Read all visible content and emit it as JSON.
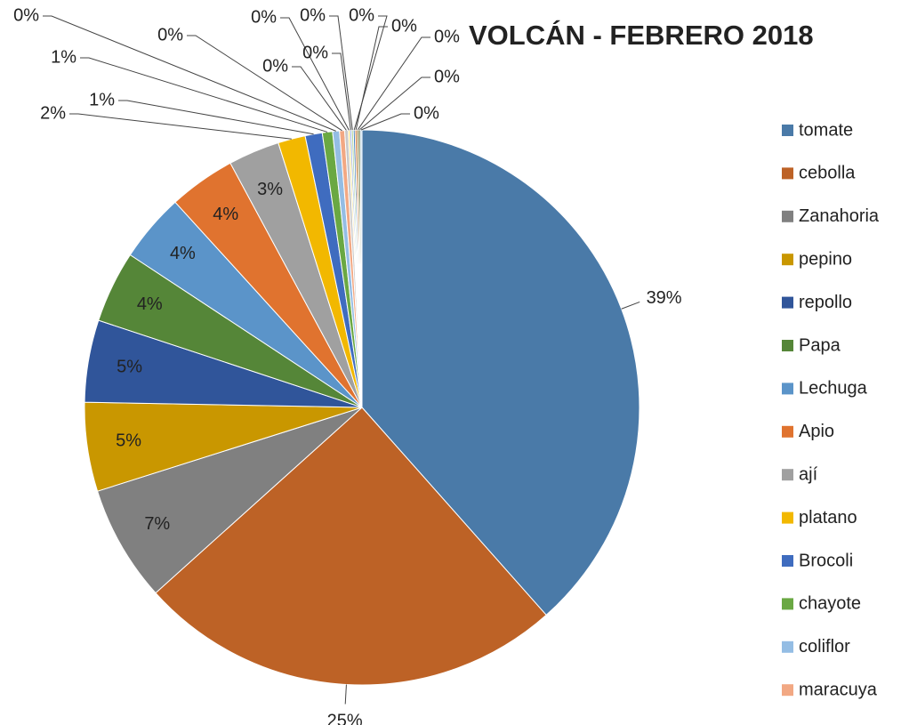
{
  "chart_data": {
    "type": "pie",
    "title": "VOLCÁN - FEBRERO 2018",
    "categories": [
      "tomate",
      "cebolla",
      "Zanahoria",
      "pepino",
      "repollo",
      "Papa",
      "Lechuga",
      "Apio",
      "ají",
      "platano",
      "Brocoli",
      "chayote",
      "coliflor",
      "maracuya",
      null,
      null,
      null,
      null,
      null,
      null,
      null,
      null,
      null
    ],
    "values": [
      38.6,
      25.0,
      6.8,
      5.2,
      4.8,
      4.2,
      4.0,
      3.9,
      3.0,
      1.6,
      1.0,
      0.6,
      0.4,
      0.3,
      0.2,
      0.1,
      0.1,
      0.1,
      0.1,
      0.1,
      0.1,
      0.1,
      0.1
    ],
    "value_labels": [
      "39%",
      "25%",
      "7%",
      "5%",
      "5%",
      "4%",
      "4%",
      "4%",
      "3%",
      "2%",
      "1%",
      "1%",
      "0%",
      "0%",
      "0%",
      "0%",
      "0%",
      "0%",
      "0%",
      "0%",
      "0%",
      "0%",
      "0%"
    ],
    "colors": [
      "#4a7aa8",
      "#bd6226",
      "#808080",
      "#c99700",
      "#30559a",
      "#558638",
      "#5b94c9",
      "#e0732f",
      "#a0a0a0",
      "#f2b800",
      "#3f6cbf",
      "#6aa843",
      "#94bde4",
      "#f2a883",
      "#c9c9c9",
      "#ffd966",
      "#8faadc",
      "#a9d18e",
      "#2e75b6",
      "#c55a11",
      "#7f6000",
      "#385723",
      "#bdd7ee"
    ],
    "legend": "right"
  }
}
